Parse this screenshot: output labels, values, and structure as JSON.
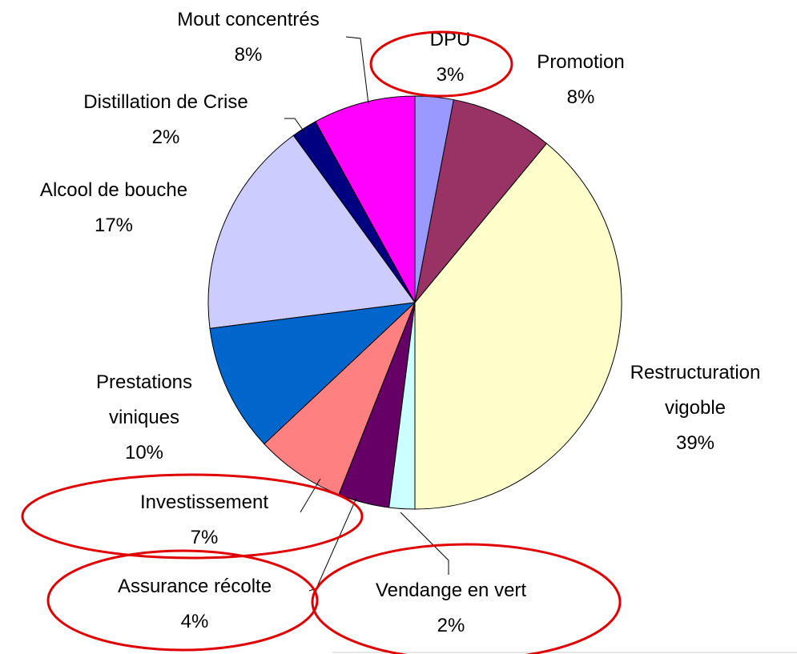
{
  "chart_data": {
    "type": "pie",
    "categories": [
      "DPU",
      "Promotion",
      "Restructuration vigoble",
      "Vendange en vert",
      "Assurance récolte",
      "Investissement",
      "Prestations viniques",
      "Alcool de bouche",
      "Distillation de Crise",
      "Mout concentrés"
    ],
    "values": [
      3,
      8,
      39,
      2,
      4,
      7,
      10,
      17,
      2,
      8
    ],
    "value_labels": [
      "3%",
      "8%",
      "39%",
      "2%",
      "4%",
      "7%",
      "10%",
      "17%",
      "2%",
      "8%"
    ],
    "colors": [
      "#9999ff",
      "#993366",
      "#ffffcc",
      "#ccffff",
      "#660066",
      "#ff8080",
      "#0066cc",
      "#ccccff",
      "#000080",
      "#ff00ff"
    ]
  }
}
